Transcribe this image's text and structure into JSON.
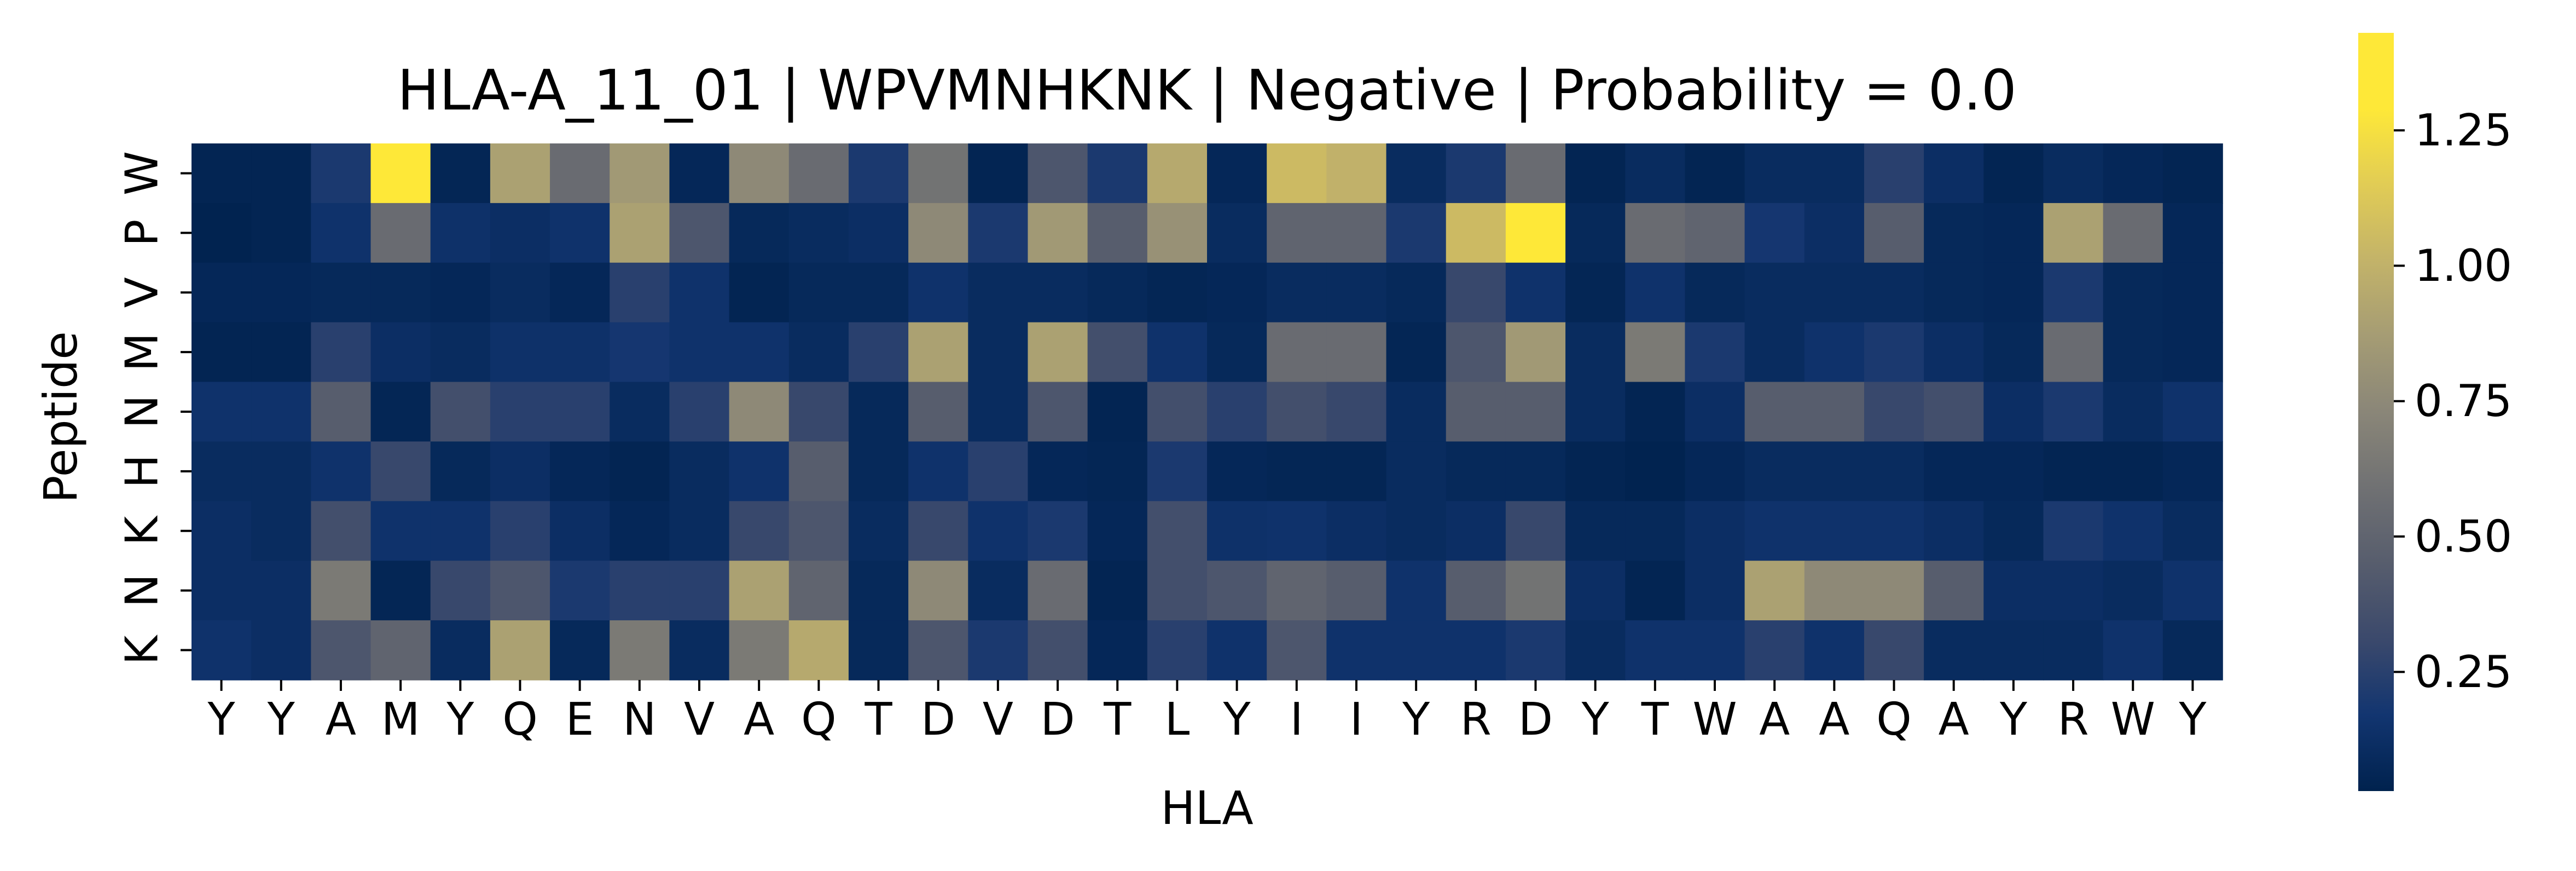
{
  "chart_data": {
    "type": "heatmap",
    "title": "HLA-A_11_01 | WPVMNHKNK | Negative | Probability = 0.0",
    "xlabel": "HLA",
    "ylabel": "Peptide",
    "x_categories": [
      "Y",
      "Y",
      "A",
      "M",
      "Y",
      "Q",
      "E",
      "N",
      "V",
      "A",
      "Q",
      "T",
      "D",
      "V",
      "D",
      "T",
      "L",
      "Y",
      "I",
      "I",
      "Y",
      "R",
      "D",
      "Y",
      "T",
      "W",
      "A",
      "A",
      "Q",
      "A",
      "Y",
      "R",
      "W",
      "Y"
    ],
    "y_categories": [
      "W",
      "P",
      "V",
      "M",
      "N",
      "H",
      "K",
      "N",
      "K"
    ],
    "colormap": "cividis",
    "colorbar": {
      "vmin": 0.03,
      "vmax": 1.43,
      "ticks": [
        0.25,
        0.5,
        0.75,
        1.0,
        1.25
      ],
      "tick_labels": [
        "0.25",
        "0.50",
        "0.75",
        "1.00",
        "1.25"
      ]
    },
    "values": [
      [
        0.05,
        0.05,
        0.2,
        1.43,
        0.06,
        0.9,
        0.55,
        0.85,
        0.07,
        0.75,
        0.55,
        0.2,
        0.6,
        0.05,
        0.4,
        0.2,
        0.95,
        0.07,
        1.05,
        1.0,
        0.1,
        0.2,
        0.55,
        0.05,
        0.1,
        0.05,
        0.1,
        0.1,
        0.25,
        0.12,
        0.05,
        0.1,
        0.07,
        0.05
      ],
      [
        0.04,
        0.05,
        0.15,
        0.55,
        0.14,
        0.12,
        0.15,
        0.9,
        0.4,
        0.08,
        0.1,
        0.12,
        0.75,
        0.2,
        0.85,
        0.45,
        0.8,
        0.1,
        0.5,
        0.5,
        0.2,
        1.05,
        1.3,
        0.08,
        0.55,
        0.5,
        0.18,
        0.12,
        0.45,
        0.08,
        0.07,
        0.9,
        0.55,
        0.07
      ],
      [
        0.07,
        0.07,
        0.08,
        0.08,
        0.07,
        0.1,
        0.07,
        0.25,
        0.15,
        0.05,
        0.08,
        0.08,
        0.15,
        0.1,
        0.1,
        0.08,
        0.06,
        0.07,
        0.1,
        0.1,
        0.08,
        0.3,
        0.15,
        0.06,
        0.15,
        0.08,
        0.1,
        0.1,
        0.1,
        0.08,
        0.07,
        0.2,
        0.08,
        0.07
      ],
      [
        0.05,
        0.05,
        0.25,
        0.12,
        0.1,
        0.14,
        0.14,
        0.18,
        0.15,
        0.15,
        0.1,
        0.25,
        0.9,
        0.1,
        0.9,
        0.35,
        0.15,
        0.08,
        0.55,
        0.55,
        0.06,
        0.4,
        0.85,
        0.1,
        0.65,
        0.2,
        0.1,
        0.15,
        0.2,
        0.12,
        0.08,
        0.55,
        0.08,
        0.07
      ],
      [
        0.15,
        0.15,
        0.45,
        0.06,
        0.35,
        0.25,
        0.25,
        0.1,
        0.25,
        0.75,
        0.3,
        0.08,
        0.45,
        0.1,
        0.4,
        0.05,
        0.35,
        0.25,
        0.35,
        0.3,
        0.1,
        0.45,
        0.45,
        0.1,
        0.05,
        0.12,
        0.45,
        0.45,
        0.3,
        0.35,
        0.12,
        0.2,
        0.1,
        0.15
      ],
      [
        0.1,
        0.1,
        0.15,
        0.3,
        0.08,
        0.12,
        0.07,
        0.05,
        0.1,
        0.15,
        0.45,
        0.08,
        0.15,
        0.25,
        0.07,
        0.06,
        0.2,
        0.07,
        0.06,
        0.06,
        0.1,
        0.08,
        0.08,
        0.05,
        0.04,
        0.07,
        0.1,
        0.1,
        0.1,
        0.07,
        0.07,
        0.05,
        0.05,
        0.07
      ],
      [
        0.12,
        0.1,
        0.35,
        0.15,
        0.15,
        0.25,
        0.12,
        0.07,
        0.1,
        0.3,
        0.4,
        0.1,
        0.3,
        0.15,
        0.2,
        0.07,
        0.35,
        0.14,
        0.15,
        0.12,
        0.1,
        0.12,
        0.3,
        0.08,
        0.08,
        0.12,
        0.15,
        0.15,
        0.15,
        0.12,
        0.08,
        0.2,
        0.15,
        0.1
      ],
      [
        0.12,
        0.12,
        0.65,
        0.06,
        0.3,
        0.4,
        0.2,
        0.25,
        0.25,
        0.9,
        0.5,
        0.08,
        0.75,
        0.1,
        0.55,
        0.05,
        0.35,
        0.4,
        0.5,
        0.45,
        0.15,
        0.45,
        0.6,
        0.12,
        0.05,
        0.12,
        0.9,
        0.75,
        0.75,
        0.45,
        0.12,
        0.12,
        0.1,
        0.15
      ],
      [
        0.15,
        0.12,
        0.4,
        0.5,
        0.1,
        0.9,
        0.08,
        0.65,
        0.1,
        0.65,
        0.95,
        0.08,
        0.4,
        0.2,
        0.35,
        0.07,
        0.25,
        0.15,
        0.4,
        0.15,
        0.15,
        0.15,
        0.2,
        0.1,
        0.15,
        0.15,
        0.25,
        0.15,
        0.3,
        0.1,
        0.1,
        0.1,
        0.15,
        0.08
      ]
    ]
  }
}
